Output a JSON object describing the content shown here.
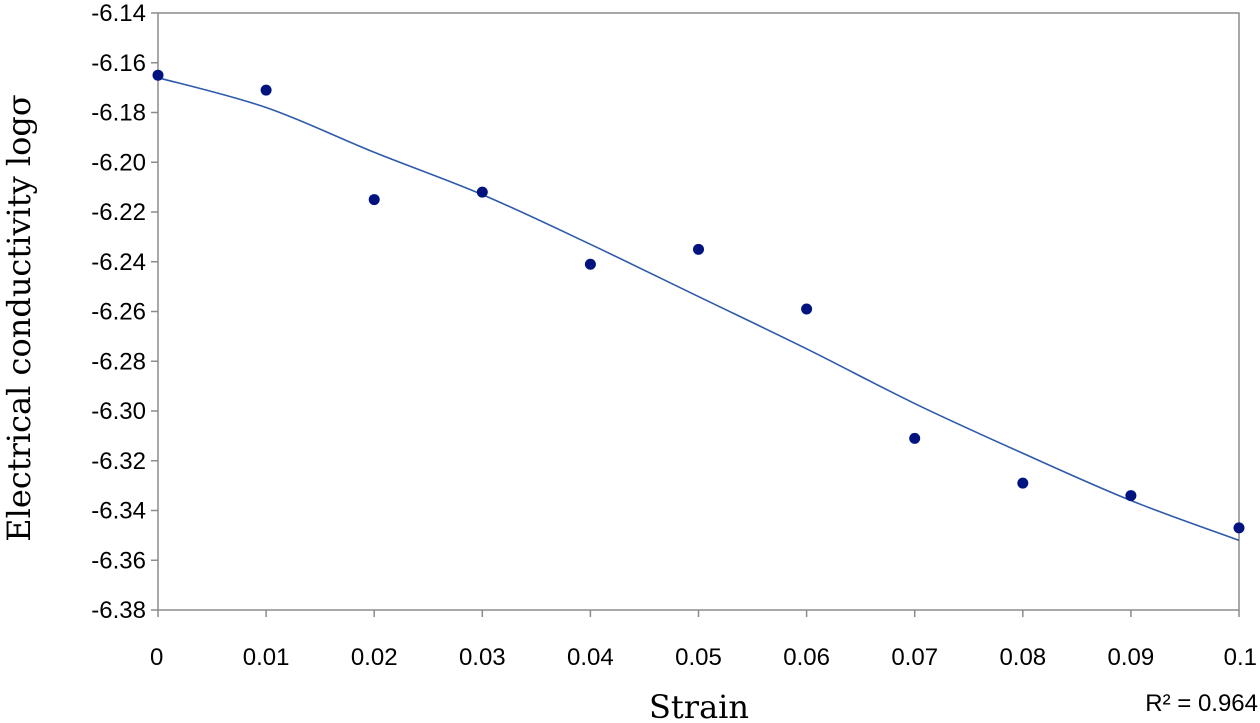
{
  "chart_data": {
    "type": "scatter",
    "title": "",
    "xlabel": "Strain",
    "ylabel": "Electrical conductivity logσ",
    "xlim": [
      0,
      0.1
    ],
    "ylim": [
      -6.38,
      -6.14
    ],
    "x_ticks": [
      "0",
      "0.01",
      "0.02",
      "0.03",
      "0.04",
      "0.05",
      "0.06",
      "0.07",
      "0.08",
      "0.09",
      "0.1"
    ],
    "y_ticks": [
      "-6.14",
      "-6.16",
      "-6.18",
      "-6.20",
      "-6.22",
      "-6.24",
      "-6.26",
      "-6.28",
      "-6.30",
      "-6.32",
      "-6.34",
      "-6.36",
      "-6.38"
    ],
    "grid": false,
    "series": [
      {
        "marker_color": "#00137F",
        "x": [
          0,
          0.01,
          0.02,
          0.03,
          0.04,
          0.05,
          0.06,
          0.07,
          0.08,
          0.09,
          0.1
        ],
        "y": [
          -6.165,
          -6.171,
          -6.215,
          -6.212,
          -6.241,
          -6.235,
          -6.259,
          -6.311,
          -6.329,
          -6.334,
          -6.347
        ]
      }
    ],
    "trendline": {
      "color": "#2E5AAC",
      "x": [
        0,
        0.01,
        0.02,
        0.03,
        0.04,
        0.05,
        0.06,
        0.07,
        0.08,
        0.09,
        0.1
      ],
      "y": [
        -6.166,
        -6.178,
        -6.196,
        -6.213,
        -6.233,
        -6.254,
        -6.275,
        -6.297,
        -6.317,
        -6.336,
        -6.352
      ]
    },
    "annotation": "R² = 0.964"
  }
}
